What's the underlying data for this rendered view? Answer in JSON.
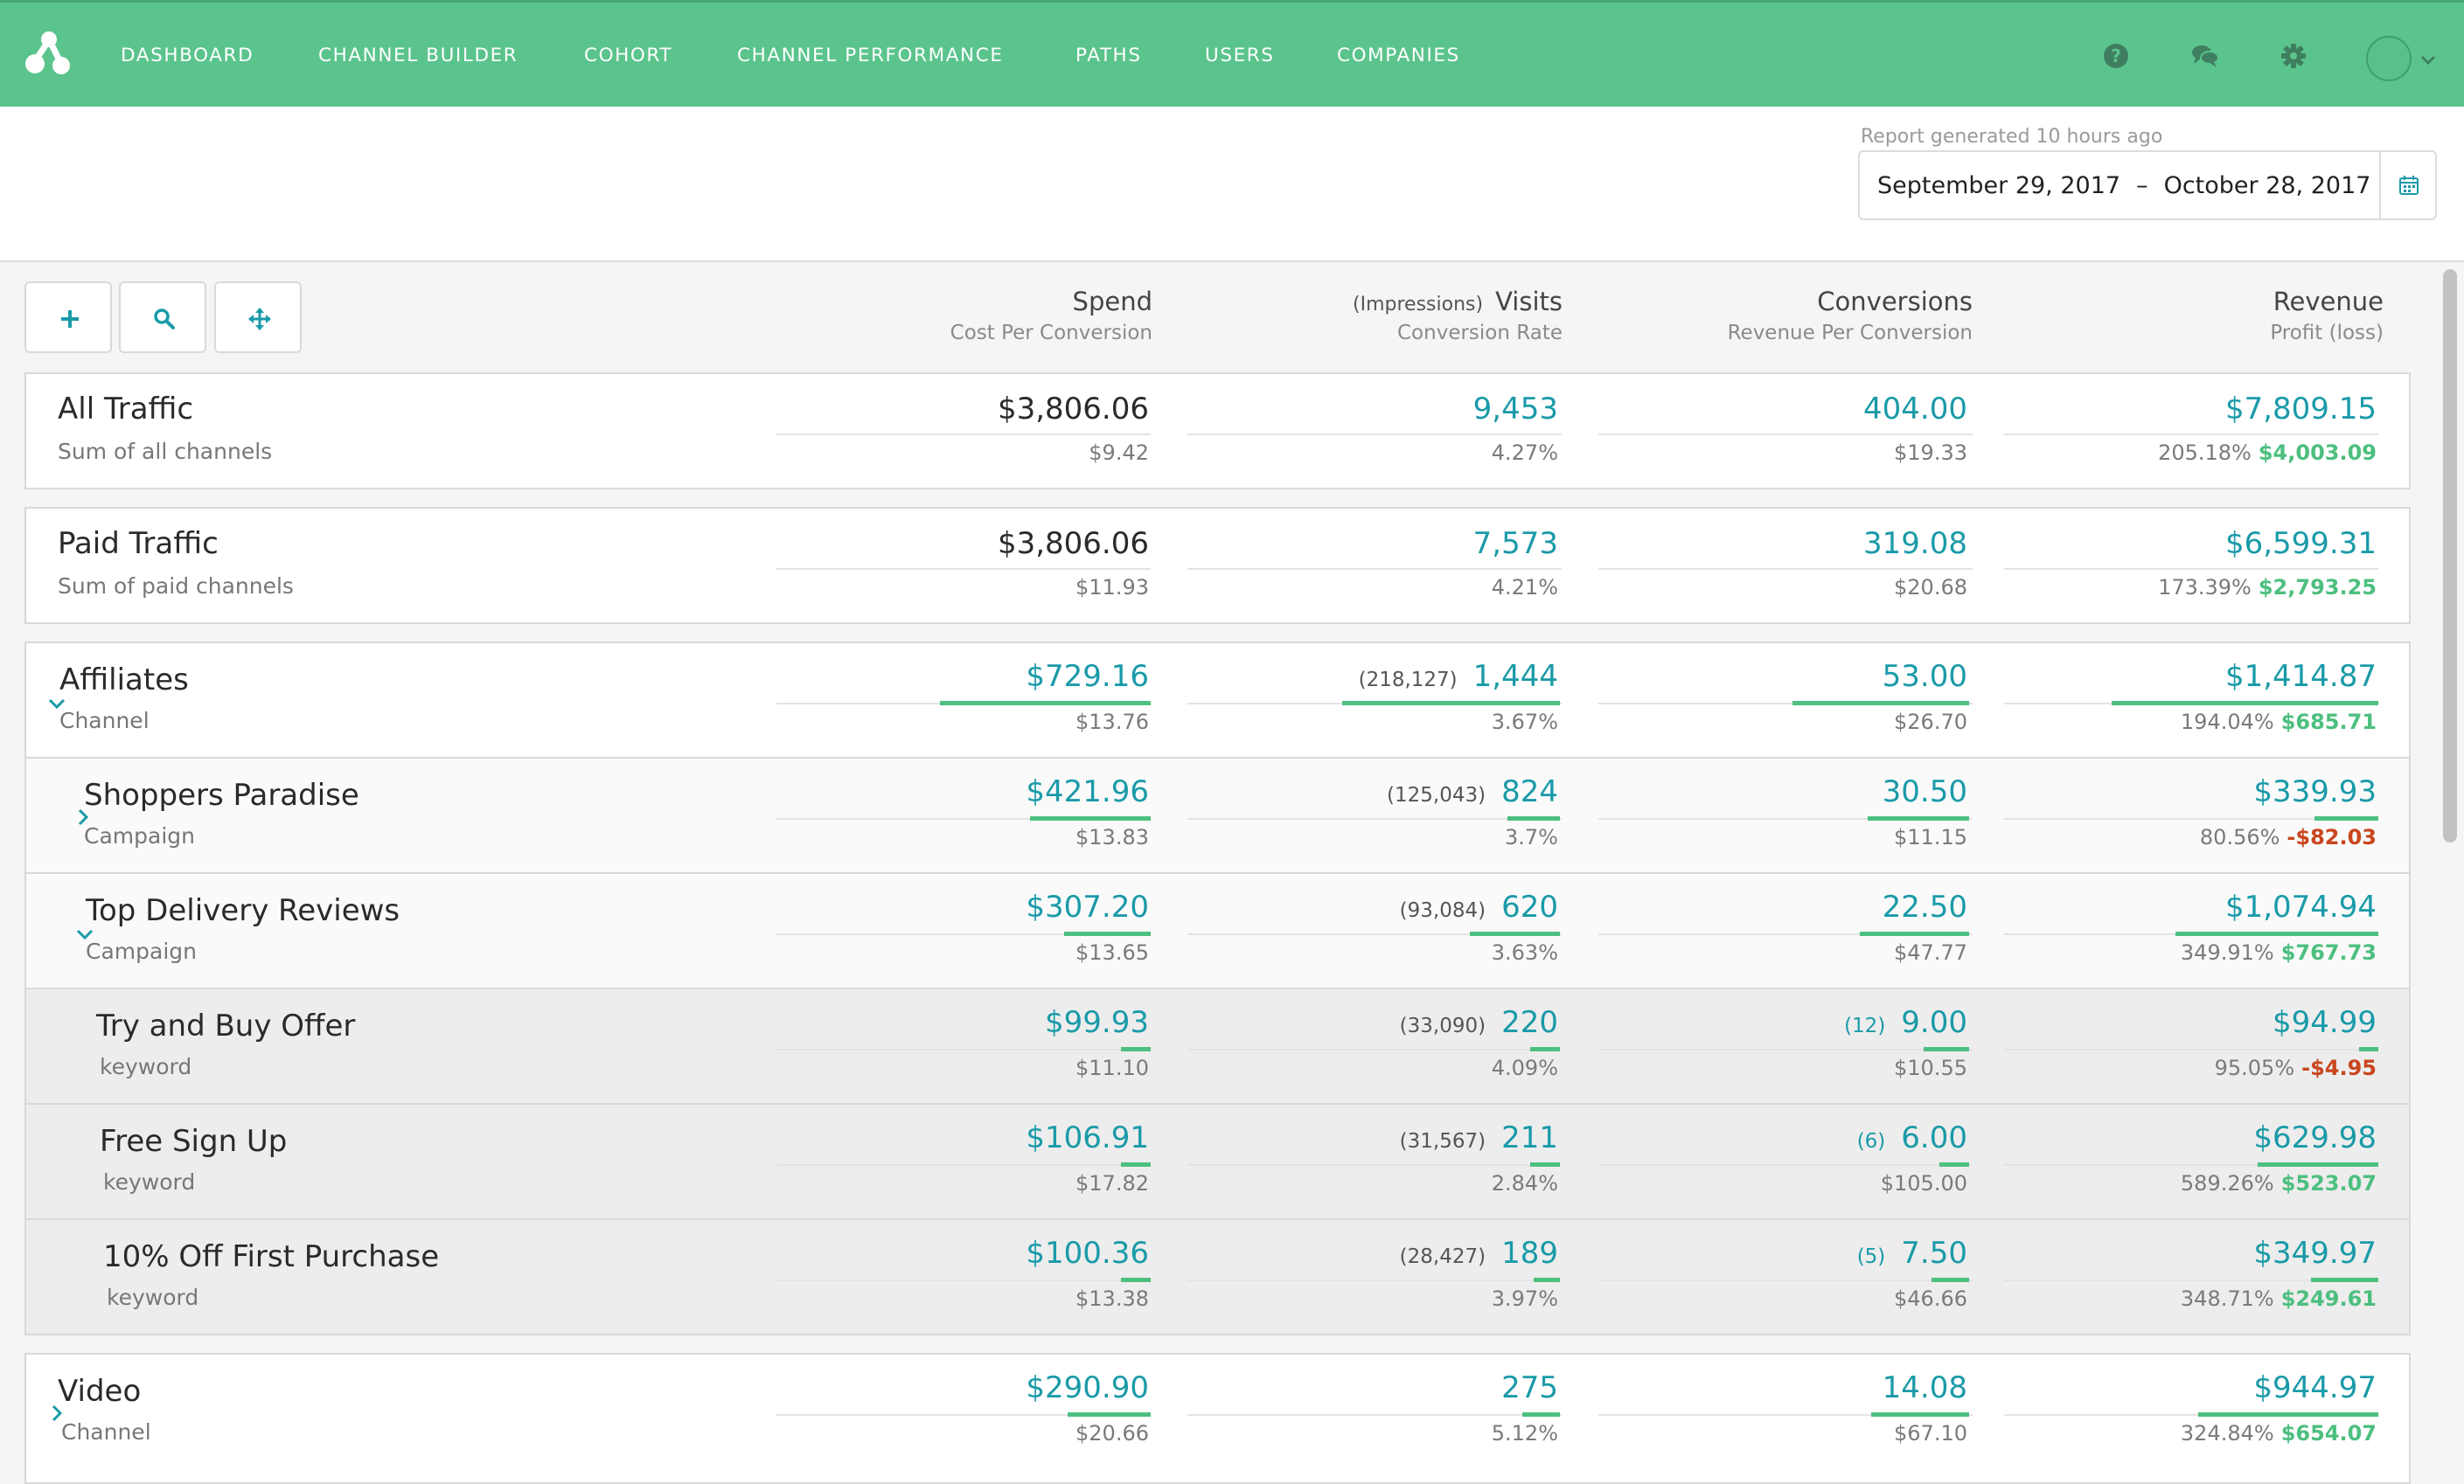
{
  "nav": {
    "items": [
      "DASHBOARD",
      "CHANNEL BUILDER",
      "COHORT",
      "CHANNEL PERFORMANCE",
      "PATHS",
      "USERS",
      "COMPANIES"
    ],
    "icons": [
      "help-icon",
      "chat-icon",
      "gear-icon"
    ],
    "brand_color": "#5bc48d"
  },
  "header": {
    "report_generated": "Report generated 10 hours ago",
    "date_start": "September 29, 2017",
    "date_sep": "–",
    "date_end": "October 28, 2017"
  },
  "columns": {
    "spend": {
      "main": "Spend",
      "sub": "Cost Per Conversion"
    },
    "visits": {
      "pre": "(Impressions)",
      "main": "Visits",
      "sub": "Conversion Rate"
    },
    "conversions": {
      "main": "Conversions",
      "sub": "Revenue Per Conversion"
    },
    "revenue": {
      "main": "Revenue",
      "sub": "Profit (loss)"
    }
  },
  "rows": [
    {
      "title": "All Traffic",
      "subtitle": "Sum of all channels",
      "chevron": "",
      "spend": "$3,806.06",
      "cpc": "$9.42",
      "impressions": "",
      "visits": "9,453",
      "rate": "4.27%",
      "conv_pre": "",
      "conversions": "404.00",
      "rpc": "$19.33",
      "revenue": "$7,809.15",
      "roi": "205.18%",
      "profit": "$4,003.09",
      "profit_sign": "pos",
      "bars": null
    },
    {
      "title": "Paid Traffic",
      "subtitle": "Sum of paid channels",
      "chevron": "",
      "spend": "$3,806.06",
      "cpc": "$11.93",
      "impressions": "",
      "visits": "7,573",
      "rate": "4.21%",
      "conv_pre": "",
      "conversions": "319.08",
      "rpc": "$20.68",
      "revenue": "$6,599.31",
      "roi": "173.39%",
      "profit": "$2,793.25",
      "profit_sign": "pos",
      "bars": null
    },
    {
      "title": "Affiliates",
      "subtitle": "Channel",
      "chevron": "down",
      "spend": "$729.16",
      "cpc": "$13.76",
      "impressions": "(218,127)",
      "visits": "1,444",
      "rate": "3.67%",
      "conv_pre": "",
      "conversions": "53.00",
      "rpc": "$26.70",
      "revenue": "$1,414.87",
      "roi": "194.04%",
      "profit": "$685.71",
      "profit_sign": "pos",
      "bars": [
        0.56,
        0.58,
        0.47,
        0.71
      ]
    },
    {
      "title": "Shoppers Paradise",
      "subtitle": "Campaign",
      "chevron": "right",
      "spend": "$421.96",
      "cpc": "$13.83",
      "impressions": "(125,043)",
      "visits": "824",
      "rate": "3.7%",
      "conv_pre": "",
      "conversions": "30.50",
      "rpc": "$11.15",
      "revenue": "$339.93",
      "roi": "80.56%",
      "profit": "-$82.03",
      "profit_sign": "neg",
      "bars": [
        0.32,
        0.14,
        0.27,
        0.17
      ]
    },
    {
      "title": "Top Delivery Reviews",
      "subtitle": "Campaign",
      "chevron": "down",
      "spend": "$307.20",
      "cpc": "$13.65",
      "impressions": "(93,084)",
      "visits": "620",
      "rate": "3.63%",
      "conv_pre": "",
      "conversions": "22.50",
      "rpc": "$47.77",
      "revenue": "$1,074.94",
      "roi": "349.91%",
      "profit": "$767.73",
      "profit_sign": "pos",
      "bars": [
        0.23,
        0.24,
        0.29,
        0.54
      ]
    },
    {
      "title": "Try and Buy Offer",
      "subtitle": "keyword",
      "chevron": "",
      "spend": "$99.93",
      "cpc": "$11.10",
      "impressions": "(33,090)",
      "visits": "220",
      "rate": "4.09%",
      "conv_pre": "(12)",
      "conversions": "9.00",
      "rpc": "$10.55",
      "revenue": "$94.99",
      "roi": "95.05%",
      "profit": "-$4.95",
      "profit_sign": "neg",
      "bars": [
        0.08,
        0.08,
        0.12,
        0.05
      ]
    },
    {
      "title": "Free Sign Up",
      "subtitle": "keyword",
      "chevron": "",
      "spend": "$106.91",
      "cpc": "$17.82",
      "impressions": "(31,567)",
      "visits": "211",
      "rate": "2.84%",
      "conv_pre": "(6)",
      "conversions": "6.00",
      "rpc": "$105.00",
      "revenue": "$629.98",
      "roi": "589.26%",
      "profit": "$523.07",
      "profit_sign": "pos",
      "bars": [
        0.08,
        0.08,
        0.08,
        0.32
      ]
    },
    {
      "title": "10% Off First Purchase",
      "subtitle": "keyword",
      "chevron": "",
      "spend": "$100.36",
      "cpc": "$13.38",
      "impressions": "(28,427)",
      "visits": "189",
      "rate": "3.97%",
      "conv_pre": "(5)",
      "conversions": "7.50",
      "rpc": "$46.66",
      "revenue": "$349.97",
      "roi": "348.71%",
      "profit": "$249.61",
      "profit_sign": "pos",
      "bars": [
        0.08,
        0.07,
        0.1,
        0.18
      ]
    },
    {
      "title": "Video",
      "subtitle": "Channel",
      "chevron": "right",
      "spend": "$290.90",
      "cpc": "$20.66",
      "impressions": "",
      "visits": "275",
      "rate": "5.12%",
      "conv_pre": "",
      "conversions": "14.08",
      "rpc": "$67.10",
      "revenue": "$944.97",
      "roi": "324.84%",
      "profit": "$654.07",
      "profit_sign": "pos",
      "bars": [
        0.22,
        0.1,
        0.26,
        0.48
      ]
    }
  ]
}
